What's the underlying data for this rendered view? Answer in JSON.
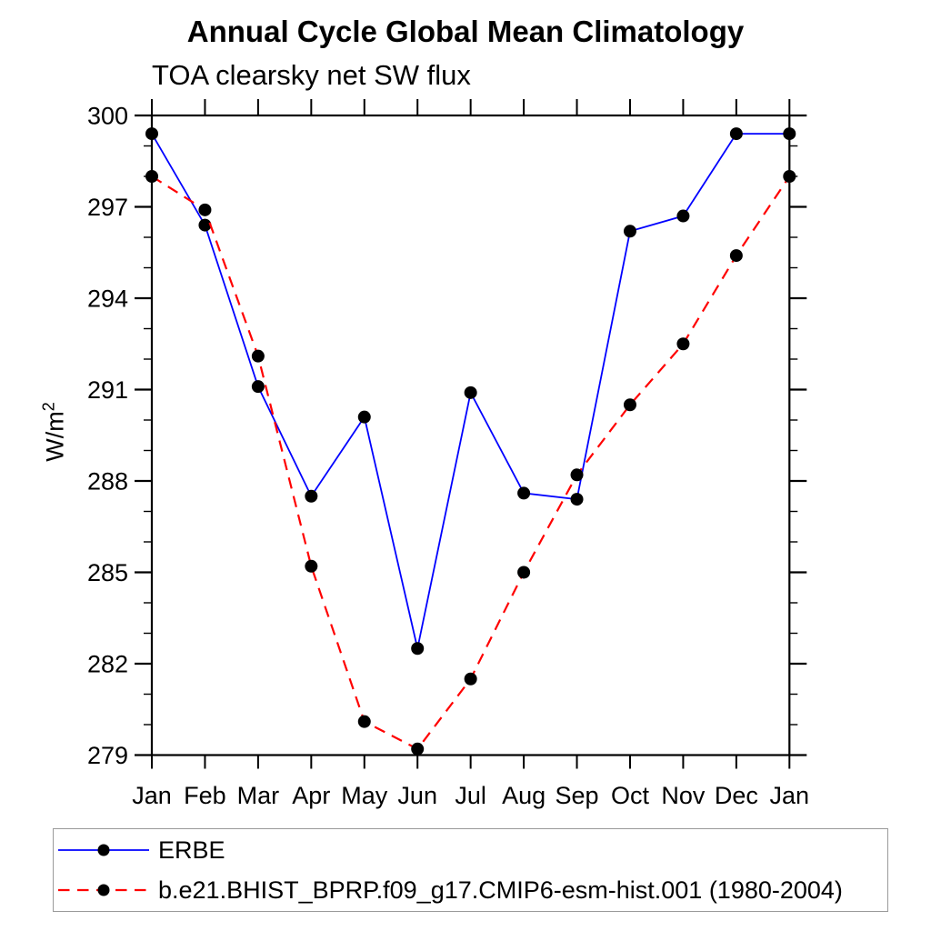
{
  "title": "Annual Cycle Global Mean Climatology",
  "subtitle": "TOA clearsky net SW flux",
  "ylabel_base": "W/m",
  "ylabel_sup": "2",
  "chart_data": {
    "type": "line",
    "title": "Annual Cycle Global Mean Climatology",
    "subtitle": "TOA clearsky net SW flux",
    "xlabel": "",
    "ylabel": "W/m^2",
    "categories": [
      "Jan",
      "Feb",
      "Mar",
      "Apr",
      "May",
      "Jun",
      "Jul",
      "Aug",
      "Sep",
      "Oct",
      "Nov",
      "Dec",
      "Jan"
    ],
    "ylim": [
      279,
      300
    ],
    "ytick_major": [
      279,
      282,
      285,
      288,
      291,
      294,
      297,
      300
    ],
    "ytick_minor_step": 1,
    "grid": false,
    "legend_position": "bottom",
    "series": [
      {
        "name": "ERBE",
        "color": "#0000ff",
        "line_style": "solid",
        "marker": "filled-circle",
        "marker_color": "#000000",
        "values": [
          299.4,
          296.4,
          291.1,
          287.5,
          290.1,
          282.5,
          290.9,
          287.6,
          287.4,
          296.2,
          296.7,
          299.4,
          299.4
        ]
      },
      {
        "name": "b.e21.BHIST_BPRP.f09_g17.CMIP6-esm-hist.001 (1980-2004)",
        "color": "#ff0000",
        "line_style": "dashed",
        "marker": "filled-circle",
        "marker_color": "#000000",
        "values": [
          298.0,
          296.9,
          292.1,
          285.2,
          280.1,
          279.2,
          281.5,
          285.0,
          288.2,
          290.5,
          292.5,
          295.4,
          298.0
        ]
      }
    ]
  },
  "legend_border_color": "#9a9a9a"
}
